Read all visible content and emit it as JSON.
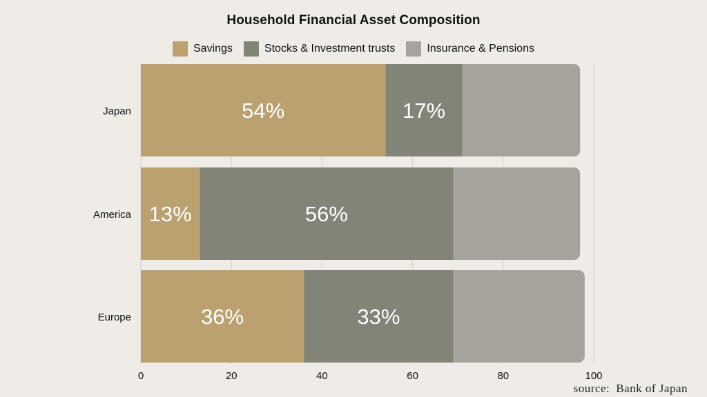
{
  "chart_data": {
    "type": "bar",
    "orientation": "horizontal",
    "stacked": true,
    "title": "Household Financial Asset Composition",
    "categories": [
      "Japan",
      "America",
      "Europe"
    ],
    "series": [
      {
        "name": "Savings",
        "color": "#bba170",
        "values": [
          54,
          13,
          36
        ],
        "labels": [
          "54%",
          "13%",
          "36%"
        ]
      },
      {
        "name": "Stocks & Investment trusts",
        "color": "#838478",
        "values": [
          17,
          56,
          33
        ],
        "labels": [
          "17%",
          "56%",
          "33%"
        ]
      },
      {
        "name": "Insurance & Pensions",
        "color": "#a5a39b",
        "values": [
          26,
          28,
          29
        ],
        "labels": [
          "",
          "",
          ""
        ]
      }
    ],
    "xlim": [
      0,
      100
    ],
    "xticks": [
      0,
      20,
      40,
      60,
      80,
      100
    ],
    "grid": true,
    "legend_position": "top"
  },
  "source": "source: Bank of Japan"
}
